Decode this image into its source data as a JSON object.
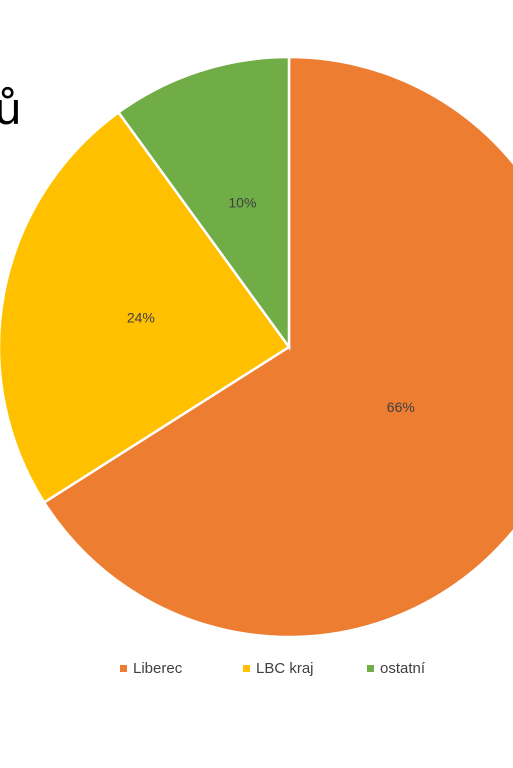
{
  "title_fragment": "ů",
  "chart_data": {
    "type": "pie",
    "title": "",
    "start_angle_deg": 0,
    "direction": "clockwise",
    "legend_position": "bottom",
    "slices": [
      {
        "name": "Liberec",
        "value": 66,
        "label": "66%",
        "color": "#ED7D31"
      },
      {
        "name": "LBC kraj",
        "value": 24,
        "label": "24%",
        "color": "#FFC000"
      },
      {
        "name": "ostatní",
        "value": 10,
        "label": "10%",
        "color": "#70AD47"
      }
    ]
  }
}
